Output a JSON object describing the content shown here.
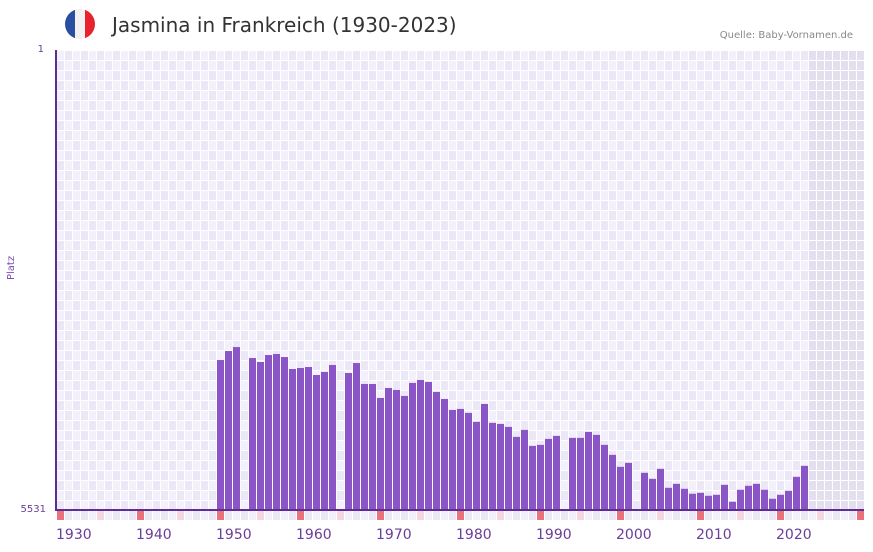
{
  "header": {
    "title": "Jasmina in Frankreich (1930-2023)",
    "source": "Quelle: Baby-Vornamen.de",
    "flag_icon": "france-flag-icon",
    "flag_colors": [
      "#2a4fa0",
      "#f2f2f2",
      "#e8232e"
    ]
  },
  "colors": {
    "bar": "#8b55c8",
    "axis": "#5d2e91",
    "grid_bg_a": "#f3f0fb",
    "grid_bg_b": "#ece7f7",
    "future_bg": "#e3dfee",
    "decade_marker": "#e8737b",
    "half_decade_marker": "#f5d6e0"
  },
  "chart_data": {
    "type": "bar",
    "title": "Jasmina in Frankreich (1930-2023)",
    "xlabel": "",
    "ylabel": "Platz",
    "y_axis_inverted": true,
    "ylim": [
      5531,
      1
    ],
    "y_ticks": [
      "1",
      "5531"
    ],
    "x_range": [
      1930,
      2030
    ],
    "x_ticks": [
      "1930",
      "1940",
      "1950",
      "1960",
      "1970",
      "1980",
      "1990",
      "2000",
      "2010",
      "2020"
    ],
    "grid": true,
    "categories": [
      1950,
      1951,
      1952,
      1954,
      1955,
      1956,
      1957,
      1958,
      1959,
      1960,
      1961,
      1962,
      1963,
      1964,
      1966,
      1967,
      1968,
      1969,
      1970,
      1971,
      1972,
      1973,
      1974,
      1975,
      1976,
      1977,
      1978,
      1979,
      1980,
      1981,
      1982,
      1983,
      1984,
      1985,
      1986,
      1987,
      1988,
      1989,
      1990,
      1991,
      1992,
      1994,
      1995,
      1996,
      1997,
      1998,
      1999,
      2000,
      2001,
      2003,
      2004,
      2005,
      2006,
      2007,
      2008,
      2009,
      2010,
      2011,
      2012,
      2013,
      2014,
      2015,
      2016,
      2017,
      2018,
      2019,
      2020,
      2021,
      2022,
      2023
    ],
    "values": [
      3728,
      3620,
      3572,
      3704,
      3752,
      3668,
      3656,
      3692,
      3836,
      3824,
      3812,
      3908,
      3872,
      3788,
      3884,
      3764,
      4016,
      4016,
      4184,
      4064,
      4088,
      4160,
      4004,
      3968,
      3992,
      4112,
      4196,
      4328,
      4316,
      4364,
      4472,
      4256,
      4484,
      4496,
      4532,
      4652,
      4568,
      4760,
      4748,
      4676,
      4640,
      4664,
      4664,
      4592,
      4628,
      4748,
      4868,
      5012,
      4964,
      5084,
      5156,
      5036,
      5264,
      5216,
      5276,
      5336,
      5324,
      5360,
      5348,
      5228,
      5432,
      5288,
      5240,
      5216,
      5288,
      5396,
      5348,
      5300,
      5132,
      5000
    ]
  }
}
